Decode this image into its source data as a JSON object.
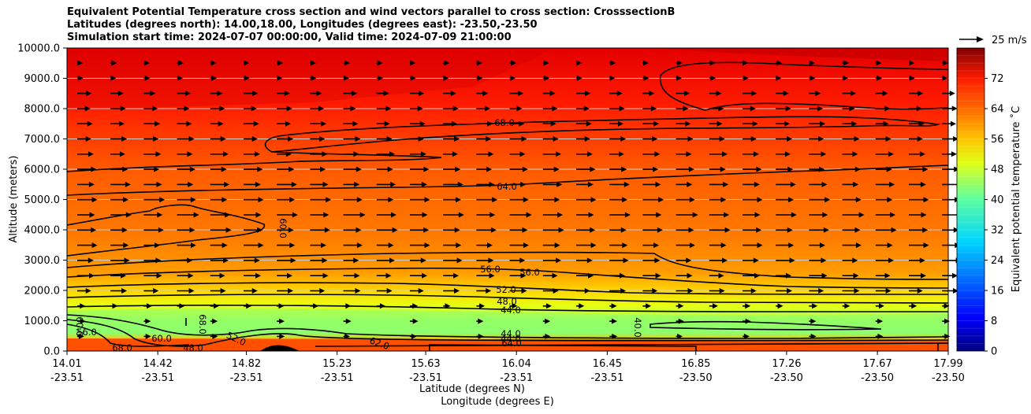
{
  "title": {
    "line1": "Equivalent Potential Temperature cross section and wind vectors parallel to cross section: CrosssectionB",
    "line2": "Latitudes (degrees north): 14.00,18.00, Longitudes (degrees east): -23.50,-23.50",
    "line3": "Simulation start time: 2024-07-07 00:00:00, Valid time: 2024-07-09 21:00:00"
  },
  "quiver_key": "25 m/s",
  "chart_data": {
    "type": "filled-contour-cross-section",
    "ylabel": "Altitude (meters)",
    "xlabel_lat": "Latitude (degrees N)",
    "xlabel_lon": "Longitude (degrees E)",
    "colorbar_label": "Equivalent potential temperature ˚C",
    "ylim": [
      0,
      10000
    ],
    "y_ticks": [
      "0.0",
      "1000.0",
      "2000.0",
      "3000.0",
      "4000.0",
      "5000.0",
      "6000.0",
      "7000.0",
      "8000.0",
      "9000.0",
      "10000.0"
    ],
    "x_ticks": [
      {
        "lat": "14.01",
        "lon": "-23.51"
      },
      {
        "lat": "14.42",
        "lon": "-23.51"
      },
      {
        "lat": "14.82",
        "lon": "-23.51"
      },
      {
        "lat": "15.23",
        "lon": "-23.51"
      },
      {
        "lat": "15.63",
        "lon": "-23.51"
      },
      {
        "lat": "16.04",
        "lon": "-23.51"
      },
      {
        "lat": "16.45",
        "lon": "-23.51"
      },
      {
        "lat": "16.85",
        "lon": "-23.50"
      },
      {
        "lat": "17.26",
        "lon": "-23.50"
      },
      {
        "lat": "17.67",
        "lon": "-23.50"
      },
      {
        "lat": "17.99",
        "lon": "-23.50"
      }
    ],
    "colorbar_range": [
      0,
      80
    ],
    "colorbar_ticks": [
      "0",
      "8",
      "16",
      "24",
      "32",
      "40",
      "48",
      "56",
      "64",
      "72"
    ],
    "contour_labels": [
      "68.0",
      "64.0",
      "60.0",
      "56.0",
      "56.0",
      "52.0",
      "48.0",
      "44.0",
      "40.0",
      "44.0",
      "44.0",
      "60.0",
      "64.0",
      "56.0",
      "60.0",
      "52.0",
      "68.0",
      "68.0",
      "48.0",
      "62.0"
    ],
    "wind_direction": "left-to-right (southerly, parallel to section)"
  }
}
